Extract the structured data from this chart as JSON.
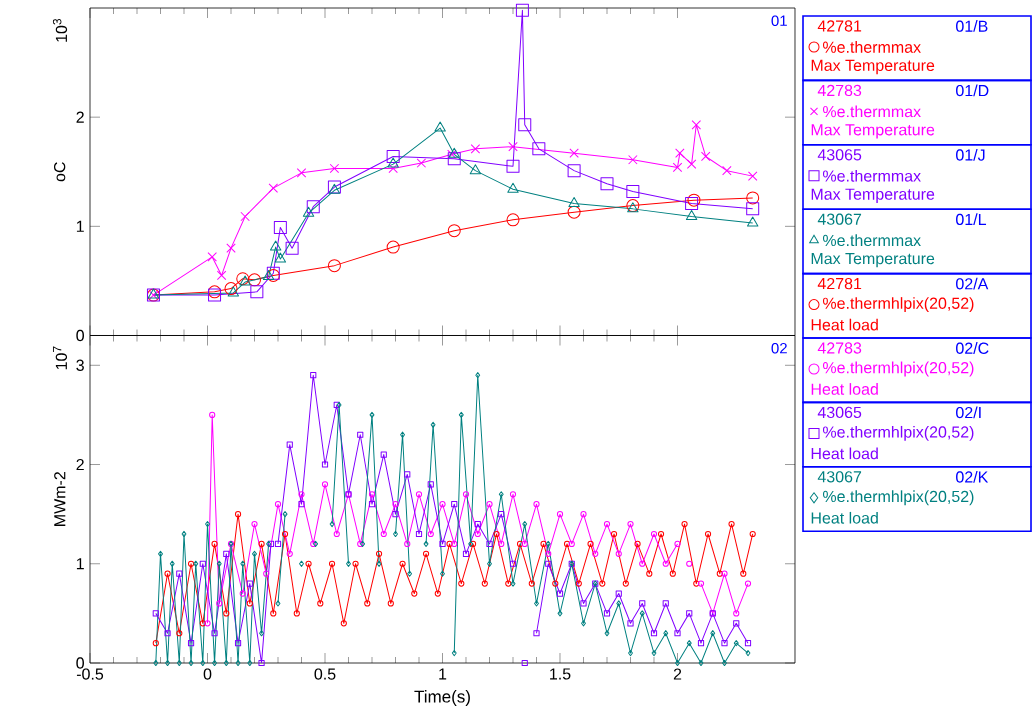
{
  "chart_data": [
    {
      "type": "line",
      "ylabel": "oC",
      "xlim": [
        -0.5,
        2.5
      ],
      "xticks": [
        -0.5,
        0,
        0.5,
        1,
        1.5,
        2
      ],
      "ylim": [
        0,
        3
      ],
      "yticks": [
        0,
        1,
        2
      ],
      "tick_labels": "y",
      "legend": "right",
      "annotations": [
        "10$^{3}$",
        "01",
        "42781",
        "01/B",
        "Max Temperature",
        "42783",
        "01/D",
        "Max Temperature",
        "43065",
        "01/J",
        "Max Temperature",
        "43067",
        "01/L",
        "Max Temperature"
      ],
      "series": [
        {
          "name": "%e.thermmax",
          "color": "#ff0000",
          "marker": "circle",
          "x": [
            -0.23,
            0.03,
            0.1,
            0.15,
            0.2,
            0.28,
            0.54,
            0.79,
            1.05,
            1.3,
            1.56,
            1.81,
            2.07,
            2.32
          ],
          "values": [
            0.37,
            0.4,
            0.43,
            0.52,
            0.51,
            0.55,
            0.64,
            0.81,
            0.96,
            1.06,
            1.13,
            1.19,
            1.24,
            1.26
          ]
        },
        {
          "name": "%e.thermmax",
          "color": "#ff00ff",
          "marker": "cross",
          "x": [
            -0.23,
            0.02,
            0.06,
            0.1,
            0.16,
            0.28,
            0.4,
            0.54,
            0.79,
            0.91,
            1.04,
            1.14,
            1.3,
            1.56,
            1.81,
            2.0,
            2.01,
            2.06,
            2.08,
            2.12,
            2.21,
            2.32
          ],
          "values": [
            0.37,
            0.72,
            0.55,
            0.8,
            1.09,
            1.35,
            1.49,
            1.53,
            1.53,
            1.58,
            1.66,
            1.71,
            1.73,
            1.67,
            1.61,
            1.54,
            1.67,
            1.57,
            1.93,
            1.64,
            1.51,
            1.46
          ]
        },
        {
          "name": "%e.thermmax",
          "color": "#8000ff",
          "marker": "square",
          "x": [
            -0.23,
            0.03,
            0.21,
            0.28,
            0.31,
            0.36,
            0.45,
            0.54,
            0.79,
            1.05,
            1.3,
            1.34,
            1.35,
            1.41,
            1.56,
            1.7,
            1.81,
            2.06,
            2.32
          ],
          "values": [
            0.37,
            0.37,
            0.4,
            0.57,
            0.99,
            0.8,
            1.18,
            1.36,
            1.64,
            1.62,
            1.55,
            2.98,
            1.93,
            1.71,
            1.51,
            1.39,
            1.32,
            1.21,
            1.16
          ]
        },
        {
          "name": "%e.thermmax",
          "color": "#008080",
          "marker": "triangle",
          "x": [
            -0.23,
            0.11,
            0.16,
            0.26,
            0.29,
            0.31,
            0.43,
            0.54,
            0.79,
            0.99,
            1.05,
            1.14,
            1.3,
            1.56,
            1.81,
            2.06,
            2.32
          ],
          "values": [
            0.37,
            0.39,
            0.49,
            0.54,
            0.81,
            0.7,
            1.12,
            1.33,
            1.57,
            1.9,
            1.66,
            1.51,
            1.34,
            1.21,
            1.16,
            1.09,
            1.03
          ]
        }
      ]
    },
    {
      "type": "line",
      "ylabel": "MWm-2",
      "xlabel": "Time(s)",
      "xlim": [
        -0.5,
        2.5
      ],
      "xticks": [
        -0.5,
        0,
        0.5,
        1,
        1.5,
        2
      ],
      "ylim": [
        0,
        3.3
      ],
      "yticks": [
        0,
        1,
        2,
        3
      ],
      "legend": "right",
      "annotations": [
        "10$^{7}$",
        "02",
        "42781",
        "02/A",
        "Heat load",
        "42783",
        "02/C",
        "Heat load",
        "43065",
        "02/I",
        "Heat load",
        "43067",
        "02/K",
        "Heat load"
      ],
      "series": [
        {
          "name": "%e.thermhlpix(20,52)",
          "color": "#ff0000",
          "marker": "circle",
          "x": [
            -0.22,
            -0.17,
            -0.12,
            -0.07,
            -0.02,
            0.03,
            0.08,
            0.13,
            0.18,
            0.23,
            0.28,
            0.33,
            0.38,
            0.43,
            0.48,
            0.53,
            0.58,
            0.63,
            0.68,
            0.73,
            0.78,
            0.83,
            0.88,
            0.93,
            0.98,
            1.03,
            1.08,
            1.13,
            1.18,
            1.23,
            1.28,
            1.33,
            1.38,
            1.43,
            1.48,
            1.53,
            1.58,
            1.63,
            1.68,
            1.73,
            1.78,
            1.83,
            1.88,
            1.93,
            1.98,
            2.03,
            2.08,
            2.13,
            2.18,
            2.23,
            2.28,
            2.32
          ],
          "values": [
            0.2,
            0.9,
            0.3,
            1.0,
            0.4,
            1.2,
            0.5,
            1.5,
            0.6,
            1.2,
            0.5,
            1.3,
            0.5,
            1.0,
            0.6,
            1.0,
            0.4,
            1.0,
            0.6,
            1.1,
            0.6,
            1.0,
            0.7,
            1.1,
            0.7,
            1.2,
            0.8,
            1.2,
            0.8,
            1.3,
            0.8,
            1.2,
            0.8,
            1.2,
            0.8,
            1.2,
            0.8,
            1.2,
            0.8,
            1.3,
            0.8,
            1.2,
            0.9,
            1.3,
            0.9,
            1.4,
            0.8,
            1.3,
            0.9,
            1.4,
            0.9,
            1.3
          ]
        },
        {
          "name": "%e.thermhlpix(20,52)",
          "color": "#ff00ff",
          "marker": "circle",
          "x": [
            0.0,
            0.02,
            0.05,
            0.1,
            0.15,
            0.2,
            0.25,
            0.3,
            0.35,
            0.4,
            0.45,
            0.5,
            0.55,
            0.6,
            0.65,
            0.7,
            0.75,
            0.8,
            0.85,
            0.9,
            0.95,
            1.0,
            1.05,
            1.1,
            1.15,
            1.2,
            1.25,
            1.3,
            1.35,
            1.4,
            1.45,
            1.5,
            1.55,
            1.6,
            1.65,
            1.7,
            1.75,
            1.8,
            1.85,
            1.9,
            1.95,
            2.0,
            2.03,
            2.05,
            2.08,
            2.1,
            2.15,
            2.2,
            2.25,
            2.3
          ],
          "values": [
            0.4,
            2.5,
            0.6,
            1.2,
            0.7,
            1.4,
            0.9,
            1.6,
            1.1,
            1.7,
            1.2,
            1.8,
            1.3,
            1.7,
            1.2,
            1.7,
            1.3,
            1.6,
            1.2,
            1.7,
            1.3,
            1.6,
            1.2,
            1.7,
            1.3,
            1.6,
            1.2,
            1.7,
            1.2,
            1.6,
            1.1,
            1.5,
            1.2,
            1.5,
            1.1,
            1.4,
            1.1,
            1.4,
            1.0,
            1.3,
            1.0,
            1.2,
            null,
            1.0,
            null,
            0.8,
            0.5,
            0.9,
            0.5,
            0.8
          ]
        },
        {
          "name": "%e.thermhlpix(20,52)",
          "color": "#8000ff",
          "marker": "square",
          "x": [
            -0.22,
            -0.17,
            -0.12,
            -0.07,
            -0.02,
            0.03,
            0.08,
            0.13,
            0.18,
            0.23,
            0.27,
            0.28,
            0.3,
            0.35,
            0.4,
            0.45,
            0.5,
            0.55,
            0.6,
            0.65,
            0.7,
            0.75,
            0.8,
            0.85,
            0.9,
            0.95,
            1.0,
            1.05,
            1.1,
            1.15,
            1.2,
            1.25,
            1.3,
            1.33,
            1.35,
            1.37,
            1.4,
            1.45,
            1.5,
            1.55,
            1.6,
            1.65,
            1.7,
            1.75,
            1.8,
            1.85,
            1.9,
            1.95,
            2.0,
            2.05,
            2.1,
            2.15,
            2.2,
            2.25,
            2.3
          ],
          "values": [
            0.5,
            0.3,
            0.9,
            0.2,
            1.0,
            0.3,
            1.1,
            0.2,
            0.8,
            0.0,
            1.2,
            null,
            1.2,
            2.2,
            1.6,
            2.9,
            2.0,
            2.6,
            1.7,
            2.3,
            1.6,
            2.1,
            1.5,
            1.9,
            1.3,
            1.8,
            1.2,
            1.6,
            1.1,
            1.4,
            1.2,
            1.5,
            1.0,
            null,
            0.0,
            null,
            0.3,
            1.0,
            0.7,
            1.0,
            0.6,
            0.8,
            0.5,
            0.7,
            0.4,
            0.6,
            0.3,
            0.6,
            0.3,
            0.5,
            0.2,
            0.5,
            0.2,
            0.4,
            0.2
          ]
        },
        {
          "name": "%e.thermhlpix(20,52)",
          "color": "#008080",
          "marker": "diamond",
          "x": [
            -0.22,
            -0.2,
            -0.17,
            -0.15,
            -0.12,
            -0.1,
            -0.07,
            -0.05,
            -0.02,
            0.0,
            0.03,
            0.05,
            0.08,
            0.1,
            0.13,
            0.15,
            0.18,
            0.2,
            0.23,
            0.26,
            0.28,
            0.3,
            0.33,
            0.36,
            0.4,
            0.43,
            0.46,
            0.5,
            0.53,
            0.56,
            0.6,
            0.63,
            0.66,
            0.7,
            0.73,
            0.76,
            0.8,
            0.83,
            0.86,
            0.9,
            0.93,
            0.96,
            1.0,
            1.02,
            1.05,
            1.08,
            1.12,
            1.15,
            1.2,
            1.25,
            1.3,
            1.35,
            1.4,
            1.45,
            1.5,
            1.55,
            1.6,
            1.65,
            1.7,
            1.75,
            1.8,
            1.85,
            1.9,
            1.95,
            2.0,
            2.05,
            2.1,
            2.15,
            2.2,
            2.25,
            2.3
          ],
          "values": [
            0.0,
            1.1,
            0.0,
            1.0,
            0.0,
            1.3,
            0.0,
            1.0,
            0.0,
            1.4,
            0.0,
            1.0,
            0.0,
            1.2,
            0.0,
            1.0,
            0.0,
            1.1,
            0.3,
            1.2,
            null,
            0.6,
            1.5,
            null,
            1.0,
            null,
            1.2,
            null,
            1.4,
            2.6,
            1.0,
            null,
            1.2,
            2.5,
            1.0,
            null,
            1.3,
            2.3,
            0.9,
            null,
            1.2,
            2.4,
            0.9,
            null,
            0.1,
            2.5,
            1.2,
            2.9,
            1.0,
            1.7,
            0.8,
            1.4,
            0.6,
            1.2,
            0.5,
            1.0,
            0.4,
            0.8,
            0.3,
            0.6,
            0.1,
            0.5,
            0.1,
            0.3,
            0.0,
            0.2,
            0.0,
            0.3,
            0.0,
            0.2,
            0.1
          ]
        }
      ]
    }
  ]
}
